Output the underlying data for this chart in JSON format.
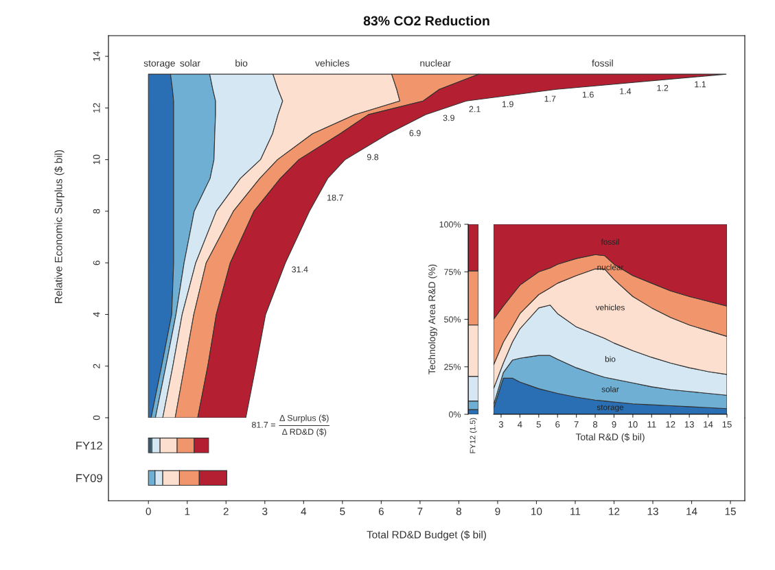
{
  "chart_data": [
    {
      "type": "area",
      "orientation": "horizontal",
      "stacked": true,
      "title": "83% CO2 Reduction",
      "ylabel": "Relative Economic Surplus ($ bil)",
      "x": [
        0,
        2,
        4,
        6,
        8,
        9.27,
        10,
        11,
        11.74,
        12.27,
        12.72,
        13.31
      ],
      "series": [
        {
          "name": "storage",
          "color": "#2a6fb4",
          "values": [
            0.07,
            0.34,
            0.6,
            0.65,
            0.65,
            0.65,
            0.65,
            0.65,
            0.65,
            0.65,
            0.62,
            0.57
          ]
        },
        {
          "name": "solar",
          "color": "#6fafd4",
          "values": [
            0.11,
            0.11,
            0.11,
            0.27,
            0.53,
            0.94,
            1.04,
            1.06,
            1.08,
            1.08,
            1.04,
            1.01
          ]
        },
        {
          "name": "bio",
          "color": "#d5e7f2",
          "values": [
            0.19,
            0.18,
            0.16,
            0.3,
            0.57,
            0.78,
            1.2,
            1.49,
            1.61,
            1.73,
            1.68,
            1.63
          ]
        },
        {
          "name": "vehicles",
          "color": "#fcdfcf",
          "values": [
            0.32,
            0.3,
            0.3,
            0.27,
            0.44,
            0.5,
            0.44,
            1.03,
            1.98,
            3.02,
            3.06,
            3.06
          ]
        },
        {
          "name": "nuclear",
          "color": "#f0956c",
          "values": [
            0.58,
            0.6,
            0.58,
            0.62,
            0.53,
            0.53,
            0.55,
            0.71,
            0.35,
            0.6,
            1.1,
            2.25
          ]
        },
        {
          "name": "fossil",
          "color": "#b51f32",
          "values": [
            1.24,
            1.24,
            1.27,
            1.42,
            1.43,
            1.22,
            1.19,
            1.24,
            1.47,
            1.11,
            3.01,
            6.37
          ]
        }
      ],
      "xlim": [
        -1.03,
        15.37
      ],
      "ylim": [
        0,
        14.8
      ],
      "yticks": [
        0,
        2,
        4,
        6,
        8,
        10,
        12,
        14
      ],
      "tick_labels": "y",
      "annotations": [
        {
          "text": "31.4",
          "x": 3.54,
          "y": 6.02
        },
        {
          "text": "18.7",
          "x": 4.45,
          "y": 8.8
        },
        {
          "text": "9.8",
          "x": 5.48,
          "y": 10.37
        },
        {
          "text": "6.9",
          "x": 6.57,
          "y": 11.3
        },
        {
          "text": "3.9",
          "x": 7.44,
          "y": 11.89
        },
        {
          "text": "2.1",
          "x": 8.11,
          "y": 12.23
        },
        {
          "text": "1.9",
          "x": 8.96,
          "y": 12.42
        },
        {
          "text": "1.7",
          "x": 10.05,
          "y": 12.63
        },
        {
          "text": "1.6",
          "x": 11.03,
          "y": 12.79
        },
        {
          "text": "1.4",
          "x": 11.99,
          "y": 12.92
        },
        {
          "text": "1.2",
          "x": 12.95,
          "y": 13.05
        },
        {
          "text": "1.1",
          "x": 13.92,
          "y": 13.19
        },
        {
          "text": "81.7 =",
          "x": 2.51,
          "y": 0
        },
        "Δ Surplus ($)\nΔ RD&D ($)"
      ]
    },
    {
      "type": "bar",
      "orientation": "horizontal",
      "stacked": true,
      "xlabel": "Total RD&D Budget ($ bil)",
      "categories": [
        "FY12",
        "FY09"
      ],
      "series": [
        {
          "color": "#2a6fb4",
          "values": [
            0.05,
            null
          ]
        },
        {
          "color": "#6fafd4",
          "values": [
            0.04,
            0.17
          ]
        },
        {
          "color": "#d5e7f2",
          "values": [
            0.21,
            0.2
          ]
        },
        {
          "color": "#fcdfcf",
          "values": [
            0.44,
            0.43
          ]
        },
        {
          "color": "#f0956c",
          "values": [
            0.44,
            0.51
          ]
        },
        {
          "color": "#b51f32",
          "values": [
            0.37,
            0.71
          ]
        }
      ],
      "xlim": [
        -1.03,
        15.37
      ],
      "xticks": [
        0,
        1,
        2,
        3,
        4,
        5,
        6,
        7,
        8,
        9,
        10,
        11,
        12,
        13,
        14,
        15
      ]
    },
    {
      "type": "bar",
      "stacked": true,
      "ylabel": "Technology Area R&D (%)",
      "categories": [
        "FY12 (1.5)"
      ],
      "series": [
        {
          "color": "#2a6fb4",
          "values": [
            2.5
          ]
        },
        {
          "color": "#6fafd4",
          "values": [
            4.5
          ]
        },
        {
          "color": "#d5e7f2",
          "values": [
            13
          ]
        },
        {
          "color": "#fcdfcf",
          "values": [
            27
          ]
        },
        {
          "color": "#f0956c",
          "values": [
            28.5
          ]
        },
        {
          "color": "#b51f32",
          "values": [
            24.5
          ]
        }
      ],
      "ylim": [
        0,
        100
      ],
      "yticks": [
        {
          "value": 0,
          "label": "0%"
        },
        {
          "value": 25,
          "label": "25%"
        },
        {
          "value": 50,
          "label": "50%"
        },
        {
          "value": 75,
          "label": "75%"
        },
        {
          "value": 100,
          "label": "100%"
        }
      ]
    },
    {
      "type": "area",
      "stacked": true,
      "xlabel": "Total R&D ($ bil)",
      "x": [
        2.6,
        3.12,
        3.6,
        4,
        5,
        5.6,
        6,
        7,
        8,
        8.5,
        9,
        10,
        11,
        12,
        13,
        14,
        15
      ],
      "series": [
        {
          "name": "storage",
          "color": "#2a6fb4",
          "values": [
            3,
            19,
            19,
            17,
            13.5,
            12,
            11,
            9,
            7.5,
            7,
            6.5,
            5.5,
            5,
            4.5,
            4,
            3.5,
            3
          ]
        },
        {
          "name": "solar",
          "color": "#6fafd4",
          "values": [
            2,
            3,
            9.5,
            12.5,
            17.5,
            19,
            18,
            15.5,
            13.5,
            12.5,
            12,
            11,
            9.5,
            8.5,
            8,
            7.5,
            7
          ]
        },
        {
          "name": "bio",
          "color": "#d5e7f2",
          "values": [
            8.5,
            5,
            9.5,
            15.5,
            25,
            26.5,
            24,
            21.5,
            21,
            20.5,
            19,
            17,
            15.5,
            14,
            12.5,
            11.5,
            11
          ]
        },
        {
          "name": "vehicles",
          "color": "#fcdfcf",
          "values": [
            12.5,
            11,
            8,
            8,
            7,
            9,
            16,
            27,
            34.5,
            36.5,
            33.5,
            28.5,
            26,
            24,
            22.5,
            21.5,
            20
          ]
        },
        {
          "name": "nuclear",
          "color": "#f0956c",
          "values": [
            24,
            19,
            17,
            15,
            12,
            10.5,
            10,
            9,
            7.5,
            7,
            8,
            11,
            13,
            14,
            15,
            15.5,
            16
          ]
        },
        {
          "name": "fossil",
          "color": "#b51f32",
          "values": [
            50,
            43,
            37,
            32,
            25,
            23,
            21,
            18,
            16,
            16.5,
            21,
            27,
            31,
            35,
            38,
            40.5,
            43
          ]
        }
      ],
      "xlim": [
        2.6,
        15
      ],
      "xticks": [
        3,
        4,
        5,
        6,
        7,
        8,
        9,
        10,
        11,
        12,
        13,
        14,
        15
      ],
      "ylim": [
        0,
        100
      ],
      "tick_labels": "x"
    }
  ]
}
